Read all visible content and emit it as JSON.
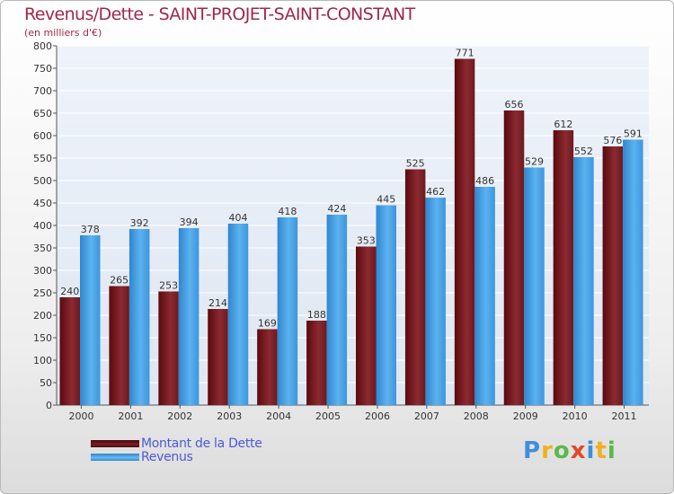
{
  "header": {
    "title": "Revenus/Dette - SAINT-PROJET-SAINT-CONSTANT",
    "subtitle": "(en milliers d'€)"
  },
  "colors": {
    "dette": "#7a1e26",
    "revenus": "#4aa3e6",
    "title": "#a0284a",
    "legend_text": "#4a5bd6"
  },
  "legend": {
    "items": [
      {
        "label": "Montant de la Dette",
        "color": "#6b0f12"
      },
      {
        "label": "Revenus",
        "color": "#3f9be0"
      }
    ]
  },
  "logo": {
    "letters": [
      {
        "char": "P",
        "color": "#3f8fd8"
      },
      {
        "char": "r",
        "color": "#f0b020"
      },
      {
        "char": "o",
        "color": "#5ab84a"
      },
      {
        "char": "x",
        "color": "#e04a2a"
      },
      {
        "char": "i",
        "color": "#3f8fd8"
      },
      {
        "char": "t",
        "color": "#f0b020"
      },
      {
        "char": "i",
        "color": "#5ab84a"
      }
    ]
  },
  "chart_data": {
    "type": "bar",
    "title": "Revenus/Dette - SAINT-PROJET-SAINT-CONSTANT",
    "ylabel": "(en milliers d'€)",
    "ylim": [
      0,
      800
    ],
    "ytick_step": 50,
    "grid": true,
    "legend_position": "bottom-left",
    "categories": [
      "2000",
      "2001",
      "2002",
      "2003",
      "2004",
      "2005",
      "2006",
      "2007",
      "2008",
      "2009",
      "2010",
      "2011"
    ],
    "series": [
      {
        "name": "Montant de la Dette",
        "values": [
          240,
          265,
          253,
          214,
          169,
          188,
          353,
          525,
          771,
          656,
          612,
          576
        ]
      },
      {
        "name": "Revenus",
        "values": [
          378,
          392,
          394,
          404,
          418,
          424,
          445,
          462,
          486,
          529,
          552,
          591
        ]
      }
    ]
  }
}
